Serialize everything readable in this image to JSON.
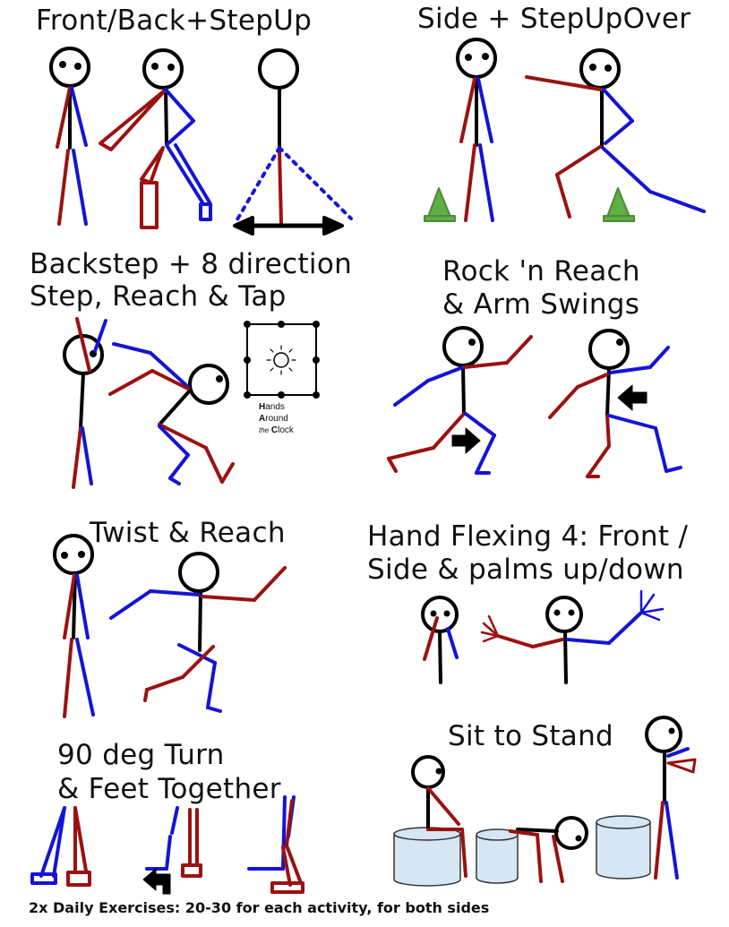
{
  "panels": {
    "front_back": {
      "title": "Front/Back+StepUp"
    },
    "side": {
      "title": "Side + StepUpOver"
    },
    "backstep": {
      "title_line1": "Backstep + 8 direction",
      "title_line2": "Step, Reach & Tap"
    },
    "clock": {
      "line1_bold": "H",
      "line1": "ands",
      "line2_bold": "A",
      "line2": "round",
      "line3_small": "the",
      "line3_bold": "C",
      "line3": "lock"
    },
    "rock": {
      "title_line1": "Rock 'n Reach",
      "title_line2": "& Arm Swings"
    },
    "twist": {
      "title": "Twist & Reach"
    },
    "hand": {
      "title_line1": "Hand Flexing 4:  Front /",
      "title_line2": "Side & palms up/down"
    },
    "turn": {
      "title_line1": "90 deg Turn",
      "title_line2": "& Feet Together"
    },
    "sit": {
      "title": "Sit to Stand"
    }
  },
  "footer": "2x Daily Exercises:  20-30 for each activity, for both sides",
  "colors": {
    "left_limb": "#9b1111",
    "right_limb": "#1414d6",
    "body": "#000000",
    "cone": "#4e9a3a",
    "cylinder": "#d7e6f3"
  }
}
